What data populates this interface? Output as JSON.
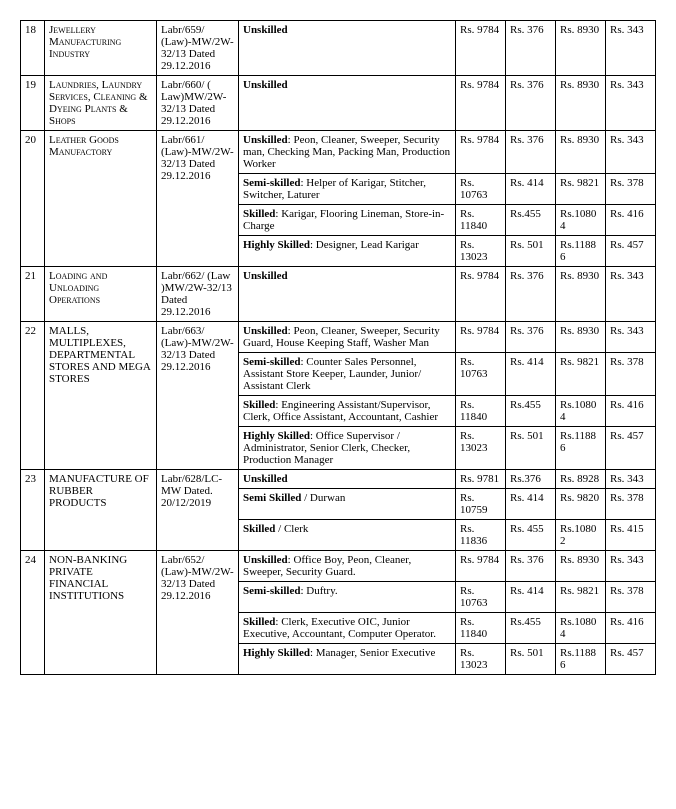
{
  "rows": [
    {
      "sn": "18",
      "industry": "Jewellery Manufacturing Industry",
      "ref": "Labr/659/ (Law)-MW/2W-32/13 Dated 29.12.2016",
      "cats": [
        {
          "label": "Unskilled",
          "desc": "",
          "v": [
            "Rs. 9784",
            "Rs. 376",
            "Rs. 8930",
            "Rs. 343"
          ]
        }
      ],
      "smallcaps": true
    },
    {
      "sn": "19",
      "industry": "Laundries, Laundry Services, Cleaning & Dyeing Plants & Shops",
      "ref": "Labr/660/ ( Law)MW/2W-32/13 Dated 29.12.2016",
      "cats": [
        {
          "label": "Unskilled",
          "desc": "",
          "v": [
            "Rs. 9784",
            "Rs. 376",
            "Rs. 8930",
            "Rs. 343"
          ]
        }
      ],
      "smallcaps": true
    },
    {
      "sn": "20",
      "industry": "Leather Goods Manufactory",
      "ref": "Labr/661/ (Law)-MW/2W-32/13 Dated 29.12.2016",
      "cats": [
        {
          "label": "Unskilled",
          "desc": ": Peon, Cleaner, Sweeper, Security man, Checking Man, Packing Man, Production Worker",
          "v": [
            "Rs. 9784",
            "Rs. 376",
            "Rs. 8930",
            "Rs. 343"
          ]
        },
        {
          "label": "Semi-skilled",
          "desc": ": Helper of Karigar, Stitcher, Switcher, Laturer",
          "v": [
            "Rs. 10763",
            "Rs. 414",
            "Rs. 9821",
            "Rs. 378"
          ]
        },
        {
          "label": "Skilled",
          "desc": ": Karigar, Flooring Lineman, Store-in-Charge",
          "v": [
            "Rs. 11840",
            "Rs.455",
            "Rs.10804",
            "Rs. 416"
          ]
        },
        {
          "label": "Highly Skilled",
          "desc": ": Designer, Lead Karigar",
          "v": [
            "Rs. 13023",
            "Rs. 501",
            "Rs.11886",
            "Rs. 457"
          ]
        }
      ],
      "smallcaps": true
    },
    {
      "sn": "21",
      "industry": "Loading and Unloading Operations",
      "ref": "Labr/662/ (Law )MW/2W-32/13 Dated 29.12.2016",
      "cats": [
        {
          "label": "Unskilled",
          "desc": "",
          "v": [
            "Rs. 9784",
            "Rs. 376",
            "Rs. 8930",
            "Rs. 343"
          ]
        }
      ],
      "smallcaps": true
    },
    {
      "sn": "22",
      "industry": "MALLS, MULTIPLEXES, DEPARTMENTAL STORES AND MEGA STORES",
      "ref": "Labr/663/ (Law)-MW/2W-32/13 Dated 29.12.2016",
      "cats": [
        {
          "label": "Unskilled",
          "desc": ": Peon, Cleaner, Sweeper, Security Guard, House Keeping Staff, Washer Man",
          "v": [
            "Rs. 9784",
            "Rs. 376",
            "Rs. 8930",
            "Rs. 343"
          ]
        },
        {
          "label": "Semi-skilled",
          "desc": ": Counter Sales Personnel, Assistant Store Keeper, Launder, Junior/ Assistant Clerk",
          "v": [
            "Rs. 10763",
            "Rs. 414",
            "Rs. 9821",
            "Rs. 378"
          ]
        },
        {
          "label": "Skilled",
          "desc": ": Engineering Assistant/Supervisor, Clerk, Office Assistant, Accountant, Cashier",
          "v": [
            "Rs. 11840",
            "Rs.455",
            "Rs.10804",
            "Rs. 416"
          ]
        },
        {
          "label": "Highly Skilled",
          "desc": ": Office Supervisor / Administrator, Senior Clerk, Checker, Production Manager",
          "v": [
            "Rs. 13023",
            "Rs. 501",
            "Rs.11886",
            "Rs. 457"
          ]
        }
      ],
      "smallcaps": false
    },
    {
      "sn": "23",
      "industry": "MANUFACTURE OF RUBBER PRODUCTS",
      "ref": "Labr/628/LC-MW Dated. 20/12/2019",
      "cats": [
        {
          "label": "Unskilled",
          "desc": "",
          "v": [
            "Rs. 9781",
            "Rs.376",
            "Rs. 8928",
            "Rs. 343"
          ]
        },
        {
          "label": "Semi Skilled",
          "desc": " / Durwan",
          "v": [
            "Rs. 10759",
            "Rs. 414",
            "Rs. 9820",
            "Rs. 378"
          ]
        },
        {
          "label": "Skilled",
          "desc": " / Clerk",
          "v": [
            "Rs. 11836",
            "Rs. 455",
            "Rs.10802",
            "Rs. 415"
          ]
        }
      ],
      "smallcaps": false
    },
    {
      "sn": "24",
      "industry": "NON-BANKING PRIVATE FINANCIAL INSTITUTIONS",
      "ref": "Labr/652/ (Law)-MW/2W-32/13 Dated 29.12.2016",
      "cats": [
        {
          "label": "Unskilled",
          "desc": ": Office Boy, Peon, Cleaner, Sweeper, Security Guard.",
          "v": [
            "Rs. 9784",
            "Rs. 376",
            "Rs. 8930",
            "Rs. 343"
          ]
        },
        {
          "label": "Semi-skilled",
          "desc": ": Duftry.",
          "v": [
            "Rs. 10763",
            "Rs. 414",
            "Rs. 9821",
            "Rs. 378"
          ]
        },
        {
          "label": "Skilled",
          "desc": ": Clerk, Executive OIC, Junior Executive, Accountant, Computer Operator.",
          "v": [
            "Rs. 11840",
            "Rs.455",
            "Rs.10804",
            "Rs. 416"
          ]
        },
        {
          "label": "Highly Skilled",
          "desc": ": Manager, Senior Executive",
          "v": [
            "Rs. 13023",
            "Rs. 501",
            "Rs.11886",
            "Rs. 457"
          ]
        }
      ],
      "smallcaps": false
    }
  ]
}
